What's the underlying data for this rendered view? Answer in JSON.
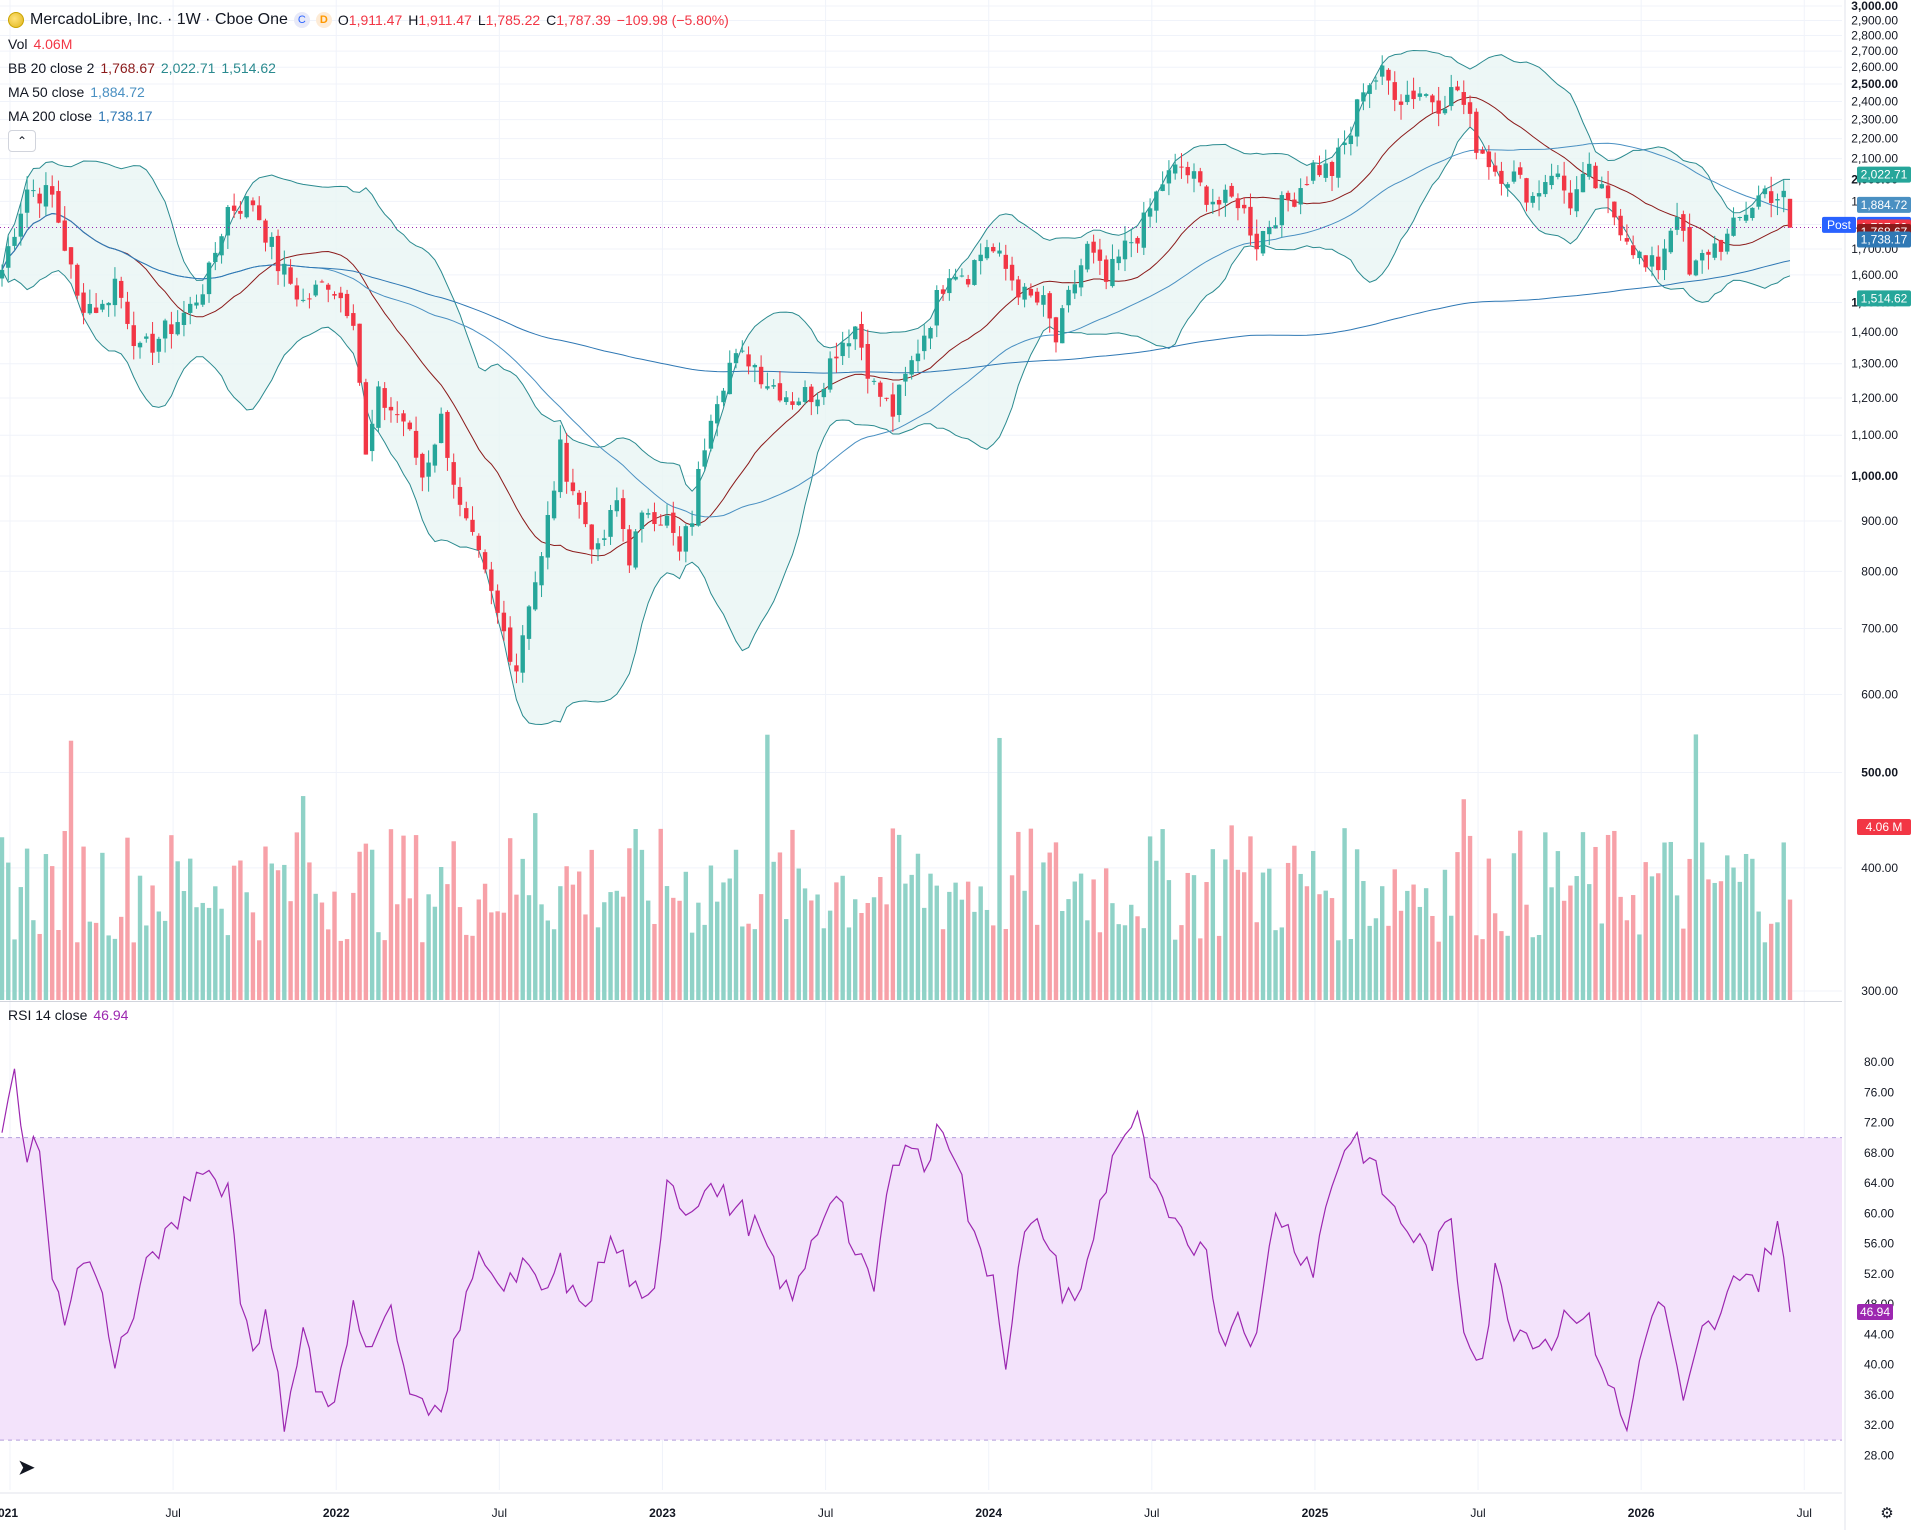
{
  "header": {
    "symbol_name": "MercadoLibre, Inc. · 1W · Cboe One",
    "badge_c": "C",
    "badge_d": "D",
    "o_label": "O",
    "o_value": "1,911.47",
    "h_label": "H",
    "h_value": "1,911.47",
    "l_label": "L",
    "l_value": "1,785.22",
    "c_label": "C",
    "c_value": "1,787.39",
    "change": "−109.98 (−5.80%)"
  },
  "indicators": {
    "vol_label": "Vol",
    "vol_value": "4.06M",
    "bb_label": "BB 20 close 2",
    "bb_basis": "1,768.67",
    "bb_upper": "2,022.71",
    "bb_lower": "1,514.62",
    "ma50_label": "MA 50 close",
    "ma50_value": "1,884.72",
    "ma200_label": "MA 200 close",
    "ma200_value": "1,738.17",
    "collapse_icon": "chevron-up-icon"
  },
  "rsi": {
    "label": "RSI 14 close",
    "value": "46.94"
  },
  "colors": {
    "up": "#26a69a",
    "down": "#f23645",
    "vol_up": "#8fd2c7",
    "vol_down": "#f7a1a8",
    "bb_line": "#2a8a8f",
    "bb_fill": "#e8f5f4",
    "ma_basis": "#8b1a1a",
    "ma50": "#4a90c2",
    "ma200": "#2f78b4",
    "rsi_line": "#9c27b0",
    "rsi_fill": "#f3e3fb"
  },
  "chart_data": [
    {
      "type": "candlestick",
      "title": "MercadoLibre, Inc. · 1W · Cboe One",
      "x_ticks": [
        "021",
        "Jul",
        "2022",
        "Jul",
        "2023",
        "Jul",
        "2024",
        "Jul",
        "2025",
        "Jul",
        "2026",
        "Jul"
      ],
      "y_ticks": [
        "3,000.00",
        "2,900.00",
        "2,800.00",
        "2,700.00",
        "2,600.00",
        "2,500.00",
        "2,400.00",
        "2,300.00",
        "2,200.00",
        "2,100.00",
        "2,000.00",
        "1,900.00",
        "1,800.00",
        "1,700.00",
        "1,600.00",
        "1,500.00",
        "1,400.00",
        "1,300.00",
        "1,200.00",
        "1,100.00",
        "1,000.00",
        "900.00",
        "800.00",
        "700.00",
        "600.00",
        "500.00",
        "400.00",
        "300.00"
      ],
      "ylim": [
        270,
        3000
      ],
      "scale": "log",
      "close_anchors": [
        [
          0,
          1620
        ],
        [
          4,
          1960
        ],
        [
          8,
          1920
        ],
        [
          12,
          1510
        ],
        [
          16,
          1480
        ],
        [
          18,
          1580
        ],
        [
          22,
          1330
        ],
        [
          26,
          1400
        ],
        [
          30,
          1480
        ],
        [
          33,
          1600
        ],
        [
          36,
          1870
        ],
        [
          40,
          1900
        ],
        [
          44,
          1640
        ],
        [
          48,
          1500
        ],
        [
          52,
          1580
        ],
        [
          56,
          1460
        ],
        [
          58,
          1040
        ],
        [
          60,
          1200
        ],
        [
          64,
          1140
        ],
        [
          67,
          1000
        ],
        [
          70,
          1140
        ],
        [
          73,
          920
        ],
        [
          76,
          820
        ],
        [
          79,
          720
        ],
        [
          82,
          640
        ],
        [
          84,
          750
        ],
        [
          86,
          820
        ],
        [
          89,
          1060
        ],
        [
          92,
          930
        ],
        [
          95,
          830
        ],
        [
          98,
          940
        ],
        [
          100,
          830
        ],
        [
          103,
          930
        ],
        [
          106,
          900
        ],
        [
          108,
          830
        ],
        [
          110,
          910
        ],
        [
          113,
          1170
        ],
        [
          116,
          1300
        ],
        [
          119,
          1320
        ],
        [
          122,
          1250
        ],
        [
          126,
          1200
        ],
        [
          130,
          1220
        ],
        [
          133,
          1350
        ],
        [
          136,
          1420
        ],
        [
          139,
          1230
        ],
        [
          142,
          1160
        ],
        [
          145,
          1300
        ],
        [
          148,
          1450
        ],
        [
          151,
          1630
        ],
        [
          154,
          1610
        ],
        [
          157,
          1720
        ],
        [
          160,
          1620
        ],
        [
          163,
          1520
        ],
        [
          166,
          1490
        ],
        [
          168,
          1370
        ],
        [
          170,
          1510
        ],
        [
          173,
          1700
        ],
        [
          176,
          1570
        ],
        [
          179,
          1700
        ],
        [
          182,
          1800
        ],
        [
          185,
          1990
        ],
        [
          188,
          2060
        ],
        [
          191,
          1960
        ],
        [
          194,
          1890
        ],
        [
          197,
          1910
        ],
        [
          200,
          1730
        ],
        [
          203,
          1850
        ],
        [
          206,
          1930
        ],
        [
          209,
          2060
        ],
        [
          212,
          2040
        ],
        [
          215,
          2230
        ],
        [
          217,
          2500
        ],
        [
          220,
          2550
        ],
        [
          223,
          2430
        ],
        [
          226,
          2460
        ],
        [
          229,
          2400
        ],
        [
          232,
          2470
        ],
        [
          235,
          2180
        ],
        [
          238,
          2050
        ],
        [
          241,
          2010
        ],
        [
          244,
          1920
        ],
        [
          247,
          2050
        ],
        [
          250,
          1900
        ],
        [
          253,
          2020
        ],
        [
          256,
          1880
        ],
        [
          259,
          1760
        ],
        [
          262,
          1620
        ],
        [
          264,
          1640
        ],
        [
          267,
          1870
        ],
        [
          269,
          1590
        ],
        [
          272,
          1700
        ],
        [
          275,
          1740
        ],
        [
          278,
          1860
        ],
        [
          281,
          1950
        ],
        [
          284,
          1910
        ],
        [
          285,
          1787
        ]
      ],
      "last": {
        "open": 1911.47,
        "high": 1911.47,
        "low": 1785.22,
        "close": 1787.39,
        "volume": "4.06M"
      },
      "price_labels": [
        {
          "name": "BB upper",
          "value": "2,022.71"
        },
        {
          "name": "MA 50",
          "value": "1,884.72"
        },
        {
          "name": "Post",
          "value": "1,790.00"
        },
        {
          "name": "Last close",
          "value": "1,787.39"
        },
        {
          "name": "BB basis",
          "value": "1,768.67"
        },
        {
          "name": "MA 200",
          "value": "1,738.17"
        },
        {
          "name": "BB lower",
          "value": "1,514.62"
        },
        {
          "name": "Volume",
          "value": "4.06 M"
        }
      ],
      "post_label": "Post"
    },
    {
      "type": "line",
      "title": "RSI 14 close",
      "y_ticks": [
        "80.00",
        "76.00",
        "72.00",
        "68.00",
        "64.00",
        "60.00",
        "56.00",
        "52.00",
        "48.00",
        "44.00",
        "40.00",
        "36.00",
        "32.00",
        "28.00"
      ],
      "ylim": [
        26.3,
        83.4
      ],
      "band": [
        30,
        70
      ],
      "rsi_anchors": [
        [
          0,
          70
        ],
        [
          2,
          78
        ],
        [
          4,
          68
        ],
        [
          6,
          70
        ],
        [
          8,
          50
        ],
        [
          10,
          47
        ],
        [
          13,
          54
        ],
        [
          15,
          52
        ],
        [
          18,
          41
        ],
        [
          20,
          44
        ],
        [
          24,
          55
        ],
        [
          27,
          57
        ],
        [
          30,
          63
        ],
        [
          32,
          67
        ],
        [
          34,
          64
        ],
        [
          36,
          64
        ],
        [
          38,
          49
        ],
        [
          40,
          43
        ],
        [
          42,
          46
        ],
        [
          45,
          33
        ],
        [
          48,
          45
        ],
        [
          50,
          37
        ],
        [
          53,
          34
        ],
        [
          56,
          47
        ],
        [
          58,
          42
        ],
        [
          61,
          48
        ],
        [
          63,
          45
        ],
        [
          65,
          36
        ],
        [
          68,
          33
        ],
        [
          71,
          37
        ],
        [
          74,
          50
        ],
        [
          77,
          55
        ],
        [
          80,
          49
        ],
        [
          83,
          53
        ],
        [
          86,
          49
        ],
        [
          89,
          53
        ],
        [
          92,
          47
        ],
        [
          94,
          50
        ],
        [
          97,
          56
        ],
        [
          99,
          54
        ],
        [
          102,
          47
        ],
        [
          104,
          49
        ],
        [
          106,
          66
        ],
        [
          109,
          60
        ],
        [
          112,
          64
        ],
        [
          115,
          62
        ],
        [
          118,
          60
        ],
        [
          121,
          57
        ],
        [
          124,
          50
        ],
        [
          127,
          50
        ],
        [
          130,
          58
        ],
        [
          133,
          64
        ],
        [
          136,
          54
        ],
        [
          139,
          50
        ],
        [
          141,
          62
        ],
        [
          144,
          71
        ],
        [
          147,
          66
        ],
        [
          150,
          72
        ],
        [
          152,
          68
        ],
        [
          155,
          56
        ],
        [
          158,
          52
        ],
        [
          160,
          41
        ],
        [
          163,
          57
        ],
        [
          166,
          58
        ],
        [
          169,
          50
        ],
        [
          172,
          49
        ],
        [
          175,
          61
        ],
        [
          178,
          70
        ],
        [
          181,
          72
        ],
        [
          184,
          62
        ],
        [
          186,
          59
        ],
        [
          189,
          55
        ],
        [
          192,
          57
        ],
        [
          194,
          43
        ],
        [
          197,
          47
        ],
        [
          200,
          43
        ],
        [
          203,
          61
        ],
        [
          206,
          56
        ],
        [
          209,
          53
        ],
        [
          212,
          64
        ],
        [
          214,
          69
        ],
        [
          216,
          70
        ],
        [
          219,
          65
        ],
        [
          222,
          60
        ],
        [
          225,
          57
        ],
        [
          228,
          54
        ],
        [
          231,
          59
        ],
        [
          233,
          45
        ],
        [
          236,
          41
        ],
        [
          238,
          52
        ],
        [
          241,
          45
        ],
        [
          244,
          44
        ],
        [
          247,
          43
        ],
        [
          250,
          48
        ],
        [
          253,
          45
        ],
        [
          256,
          38
        ],
        [
          259,
          31
        ],
        [
          262,
          45
        ],
        [
          265,
          48
        ],
        [
          268,
          34
        ],
        [
          271,
          44
        ],
        [
          274,
          46
        ],
        [
          277,
          53
        ],
        [
          280,
          51
        ],
        [
          283,
          59
        ],
        [
          285,
          46.94
        ]
      ]
    }
  ]
}
